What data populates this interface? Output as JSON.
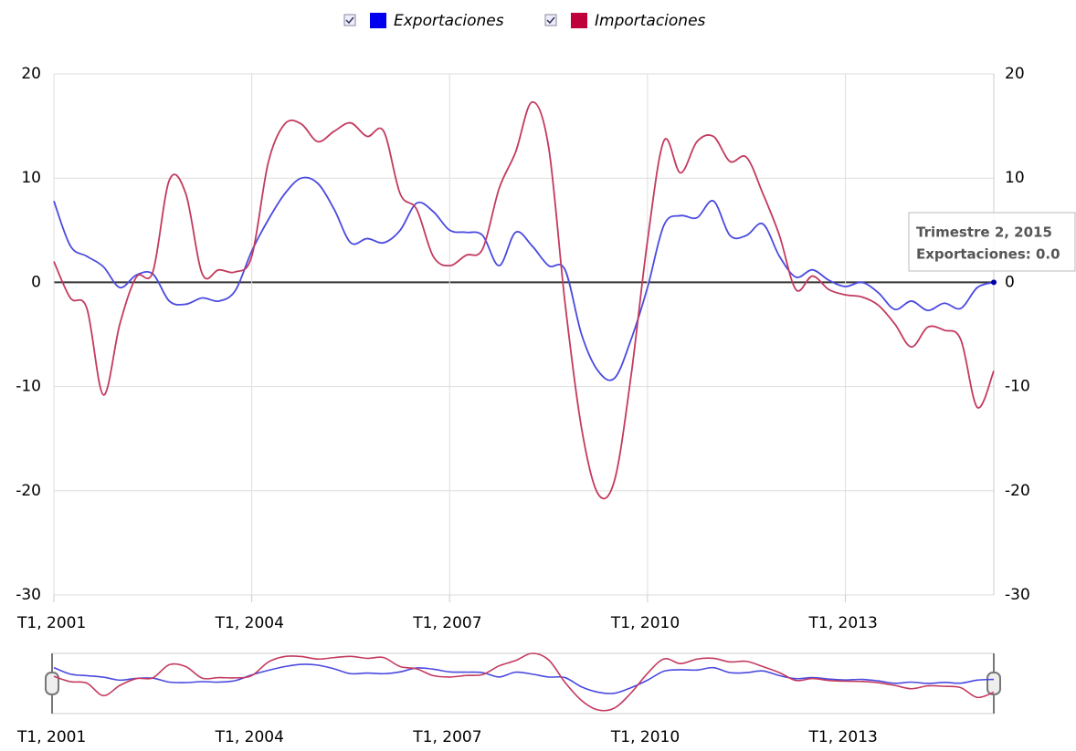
{
  "chart_data": {
    "type": "line",
    "categories": [
      "T1, 2001",
      null,
      null,
      null,
      null,
      null,
      null,
      null,
      null,
      null,
      null,
      null,
      "T1, 2004",
      null,
      null,
      null,
      null,
      null,
      null,
      null,
      null,
      null,
      null,
      null,
      "T1, 2007",
      null,
      null,
      null,
      null,
      null,
      null,
      null,
      null,
      null,
      null,
      null,
      "T1, 2010",
      null,
      null,
      null,
      null,
      null,
      null,
      null,
      null,
      null,
      null,
      null,
      "T1, 2013",
      null,
      null,
      null,
      null,
      null,
      null,
      null,
      null,
      null
    ],
    "series": [
      {
        "name": "Exportaciones",
        "color": "#0000ee",
        "values": [
          7.8,
          3.5,
          2.5,
          1.5,
          -0.5,
          0.7,
          0.8,
          -1.8,
          -2.1,
          -1.5,
          -1.8,
          -0.8,
          3.0,
          6.0,
          8.5,
          10.0,
          9.5,
          7.0,
          3.8,
          4.2,
          3.8,
          5.0,
          7.6,
          6.8,
          5.0,
          4.8,
          4.5,
          1.6,
          4.8,
          3.5,
          1.6,
          1.2,
          -5.0,
          -8.5,
          -9.2,
          -5.5,
          -0.5,
          5.5,
          6.4,
          6.2,
          7.8,
          4.5,
          4.5,
          5.6,
          2.5,
          0.5,
          1.2,
          0.2,
          -0.4,
          0.0,
          -1.0,
          -2.6,
          -1.8,
          -2.7,
          -2.0,
          -2.5,
          -0.5,
          0.0
        ]
      },
      {
        "name": "Importaciones",
        "color": "#c0003a",
        "values": [
          2.0,
          -1.5,
          -2.5,
          -10.8,
          -4.0,
          0.5,
          1.0,
          9.8,
          8.5,
          0.8,
          1.2,
          1.0,
          2.5,
          11.5,
          15.2,
          15.2,
          13.5,
          14.5,
          15.3,
          14.0,
          14.5,
          8.5,
          7.0,
          2.5,
          1.6,
          2.6,
          3.2,
          9.0,
          12.5,
          17.3,
          13.0,
          -2.0,
          -14.0,
          -20.3,
          -19.0,
          -9.0,
          4.0,
          13.6,
          10.5,
          13.5,
          14.0,
          11.6,
          12.0,
          8.5,
          4.5,
          -0.7,
          0.6,
          -0.7,
          -1.2,
          -1.4,
          -2.2,
          -4.0,
          -6.2,
          -4.3,
          -4.6,
          -5.5,
          -12.0,
          -8.5
        ]
      }
    ],
    "ylim": [
      -30,
      20
    ],
    "yticks": [
      -30,
      -20,
      -10,
      0,
      10,
      20
    ],
    "grid": true,
    "legend": "top",
    "tooltip": {
      "title": "Trimestre 2, 2015",
      "text": "Exportaciones: 0.0"
    }
  }
}
